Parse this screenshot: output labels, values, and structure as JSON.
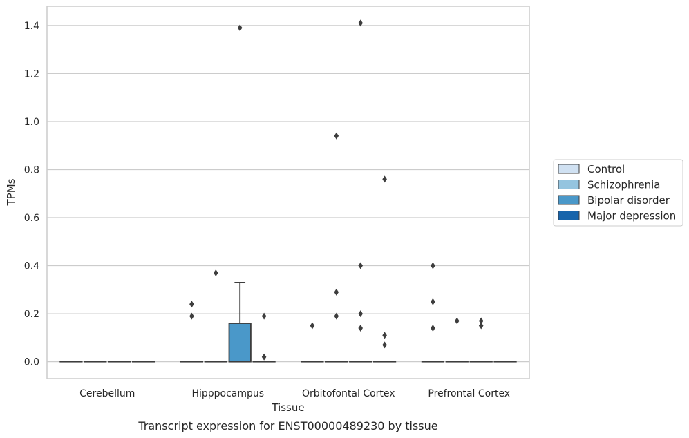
{
  "chart_data": {
    "type": "box",
    "title": "",
    "caption": "Transcript expression for ENST00000489230 by tissue",
    "xlabel": "Tissue",
    "ylabel": "TPMs",
    "ylim": [
      -0.07,
      1.48
    ],
    "yticks": [
      0.0,
      0.2,
      0.4,
      0.6,
      0.8,
      1.0,
      1.2,
      1.4
    ],
    "ytick_labels": [
      "0.0",
      "0.2",
      "0.4",
      "0.6",
      "0.8",
      "1.0",
      "1.2",
      "1.4"
    ],
    "grid": "y",
    "legend_position": "right",
    "categories": [
      "Cerebellum",
      "Hipppocampus",
      "Orbitofontal Cortex",
      "Prefrontal Cortex"
    ],
    "series": [
      {
        "name": "Control",
        "color": "#d0e1f2",
        "boxes": [
          {
            "q1": 0,
            "median": 0,
            "q3": 0,
            "whisker_low": 0,
            "whisker_high": 0,
            "outliers": []
          },
          {
            "q1": 0,
            "median": 0,
            "q3": 0,
            "whisker_low": 0,
            "whisker_high": 0,
            "outliers": [
              0.19,
              0.24
            ]
          },
          {
            "q1": 0,
            "median": 0,
            "q3": 0,
            "whisker_low": 0,
            "whisker_high": 0,
            "outliers": [
              0.15
            ]
          },
          {
            "q1": 0,
            "median": 0,
            "q3": 0,
            "whisker_low": 0,
            "whisker_high": 0,
            "outliers": [
              0.14,
              0.25,
              0.4
            ]
          }
        ]
      },
      {
        "name": "Schizophrenia",
        "color": "#94c4df",
        "boxes": [
          {
            "q1": 0,
            "median": 0,
            "q3": 0,
            "whisker_low": 0,
            "whisker_high": 0,
            "outliers": []
          },
          {
            "q1": 0,
            "median": 0,
            "q3": 0,
            "whisker_low": 0,
            "whisker_high": 0,
            "outliers": [
              0.37
            ]
          },
          {
            "q1": 0,
            "median": 0,
            "q3": 0,
            "whisker_low": 0,
            "whisker_high": 0,
            "outliers": [
              0.19,
              0.29,
              0.94
            ]
          },
          {
            "q1": 0,
            "median": 0,
            "q3": 0,
            "whisker_low": 0,
            "whisker_high": 0,
            "outliers": [
              0.17
            ]
          }
        ]
      },
      {
        "name": "Bipolar disorder",
        "color": "#4a98c9",
        "boxes": [
          {
            "q1": 0,
            "median": 0,
            "q3": 0,
            "whisker_low": 0,
            "whisker_high": 0,
            "outliers": []
          },
          {
            "q1": 0,
            "median": 0,
            "q3": 0.16,
            "whisker_low": 0,
            "whisker_high": 0.33,
            "outliers": [
              1.39
            ]
          },
          {
            "q1": 0,
            "median": 0,
            "q3": 0,
            "whisker_low": 0,
            "whisker_high": 0,
            "outliers": [
              0.14,
              0.2,
              0.4,
              1.41
            ]
          },
          {
            "q1": 0,
            "median": 0,
            "q3": 0,
            "whisker_low": 0,
            "whisker_high": 0,
            "outliers": [
              0.15,
              0.17
            ]
          }
        ]
      },
      {
        "name": "Major depression",
        "color": "#1764ab",
        "boxes": [
          {
            "q1": 0,
            "median": 0,
            "q3": 0,
            "whisker_low": 0,
            "whisker_high": 0,
            "outliers": []
          },
          {
            "q1": 0,
            "median": 0,
            "q3": 0,
            "whisker_low": 0,
            "whisker_high": 0,
            "outliers": [
              0.02,
              0.19
            ]
          },
          {
            "q1": 0,
            "median": 0,
            "q3": 0,
            "whisker_low": 0,
            "whisker_high": 0,
            "outliers": [
              0.07,
              0.11,
              0.76
            ]
          },
          {
            "q1": 0,
            "median": 0,
            "q3": 0,
            "whisker_low": 0,
            "whisker_high": 0,
            "outliers": []
          }
        ]
      }
    ]
  }
}
